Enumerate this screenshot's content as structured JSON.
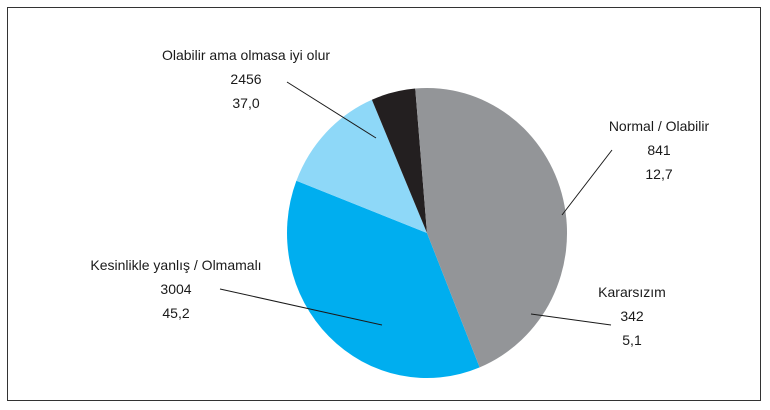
{
  "chart_data": {
    "type": "pie",
    "title": "",
    "slices": [
      {
        "label": "Olabilir ama olmasa iyi olur",
        "count": "2456",
        "percent": "37,0",
        "value": 37.0,
        "color": "#00aeef"
      },
      {
        "label": "Normal / Olabilir",
        "count": "841",
        "percent": "12,7",
        "value": 12.7,
        "color": "#8ed8f8"
      },
      {
        "label": "Kararsızım",
        "count": "342",
        "percent": "5,1",
        "value": 5.1,
        "color": "#231f20"
      },
      {
        "label": "Kesinlikle yanlış / Olmamalı",
        "count": "3004",
        "percent": "45,2",
        "value": 45.2,
        "color": "#939598"
      }
    ]
  }
}
